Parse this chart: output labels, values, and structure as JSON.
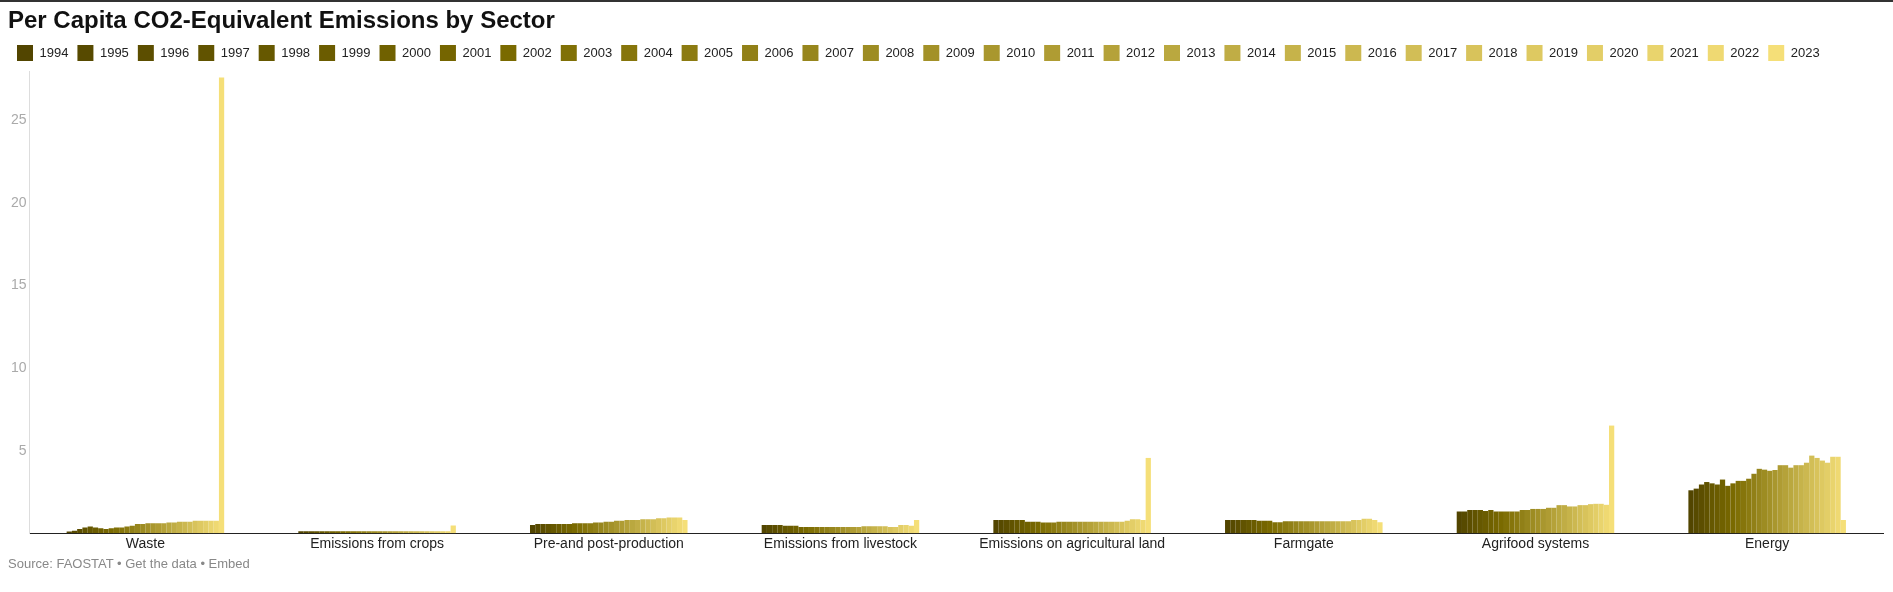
{
  "chart_data": {
    "type": "bar",
    "title": "Per Capita CO2-Equivalent Emissions by Sector",
    "categories": [
      "Waste",
      "Emissions from crops",
      "Pre-and post-production",
      "Emissions from livestock",
      "Emissions on agricultural land",
      "Farmgate",
      "Agrifood systems",
      "Energy"
    ],
    "series": [
      {
        "name": "1994",
        "color": "#524500",
        "values": [
          0.1,
          0.12,
          0.5,
          0.5,
          0.8,
          0.8,
          1.32,
          2.6
        ]
      },
      {
        "name": "1995",
        "color": "#574a00",
        "values": [
          0.15,
          0.12,
          0.55,
          0.5,
          0.8,
          0.8,
          1.32,
          2.7
        ]
      },
      {
        "name": "1996",
        "color": "#5c4e00",
        "values": [
          0.25,
          0.12,
          0.55,
          0.5,
          0.8,
          0.8,
          1.4,
          2.95
        ]
      },
      {
        "name": "1997",
        "color": "#615300",
        "values": [
          0.35,
          0.12,
          0.55,
          0.5,
          0.8,
          0.8,
          1.4,
          3.1
        ]
      },
      {
        "name": "1998",
        "color": "#665800",
        "values": [
          0.4,
          0.12,
          0.55,
          0.45,
          0.8,
          0.8,
          1.4,
          3.02
        ]
      },
      {
        "name": "1999",
        "color": "#6b5c00",
        "values": [
          0.35,
          0.12,
          0.55,
          0.45,
          0.8,
          0.8,
          1.35,
          2.95
        ]
      },
      {
        "name": "2000",
        "color": "#706100",
        "values": [
          0.3,
          0.12,
          0.55,
          0.45,
          0.7,
          0.75,
          1.4,
          3.25
        ]
      },
      {
        "name": "2001",
        "color": "#756500",
        "values": [
          0.25,
          0.12,
          0.55,
          0.37,
          0.7,
          0.75,
          1.32,
          2.87
        ]
      },
      {
        "name": "2002",
        "color": "#7a6a00",
        "values": [
          0.3,
          0.12,
          0.6,
          0.37,
          0.7,
          0.75,
          1.32,
          3.02
        ]
      },
      {
        "name": "2003",
        "color": "#807006",
        "values": [
          0.35,
          0.12,
          0.6,
          0.37,
          0.65,
          0.66,
          1.32,
          3.17
        ]
      },
      {
        "name": "2004",
        "color": "#86750b",
        "values": [
          0.35,
          0.12,
          0.6,
          0.37,
          0.65,
          0.66,
          1.32,
          3.17
        ]
      },
      {
        "name": "2005",
        "color": "#8c7b11",
        "values": [
          0.4,
          0.12,
          0.6,
          0.37,
          0.65,
          0.73,
          1.32,
          3.3
        ]
      },
      {
        "name": "2006",
        "color": "#918017",
        "values": [
          0.45,
          0.12,
          0.65,
          0.37,
          0.7,
          0.73,
          1.4,
          3.6
        ]
      },
      {
        "name": "2007",
        "color": "#97861d",
        "values": [
          0.55,
          0.12,
          0.65,
          0.37,
          0.7,
          0.73,
          1.4,
          3.9
        ]
      },
      {
        "name": "2008",
        "color": "#9d8c22",
        "values": [
          0.55,
          0.12,
          0.7,
          0.37,
          0.7,
          0.73,
          1.47,
          3.85
        ]
      },
      {
        "name": "2009",
        "color": "#a39128",
        "values": [
          0.6,
          0.12,
          0.7,
          0.37,
          0.7,
          0.73,
          1.47,
          3.78
        ]
      },
      {
        "name": "2010",
        "color": "#a9972e",
        "values": [
          0.6,
          0.12,
          0.75,
          0.37,
          0.7,
          0.73,
          1.47,
          3.83
        ]
      },
      {
        "name": "2011",
        "color": "#af9c33",
        "values": [
          0.6,
          0.12,
          0.75,
          0.37,
          0.7,
          0.73,
          1.54,
          4.12
        ]
      },
      {
        "name": "2012",
        "color": "#b5a239",
        "values": [
          0.6,
          0.12,
          0.8,
          0.37,
          0.7,
          0.73,
          1.54,
          4.12
        ]
      },
      {
        "name": "2013",
        "color": "#baa83f",
        "values": [
          0.65,
          0.12,
          0.8,
          0.42,
          0.7,
          0.73,
          1.7,
          3.97
        ]
      },
      {
        "name": "2014",
        "color": "#c0ad45",
        "values": [
          0.65,
          0.12,
          0.8,
          0.42,
          0.7,
          0.73,
          1.7,
          4.12
        ]
      },
      {
        "name": "2015",
        "color": "#c6b34a",
        "values": [
          0.7,
          0.12,
          0.85,
          0.42,
          0.7,
          0.73,
          1.62,
          4.12
        ]
      },
      {
        "name": "2016",
        "color": "#ccb850",
        "values": [
          0.7,
          0.12,
          0.85,
          0.42,
          0.7,
          0.73,
          1.62,
          4.27
        ]
      },
      {
        "name": "2017",
        "color": "#d2be56",
        "values": [
          0.7,
          0.12,
          0.85,
          0.42,
          0.7,
          0.73,
          1.7,
          4.7
        ]
      },
      {
        "name": "2018",
        "color": "#d8c35b",
        "values": [
          0.75,
          0.12,
          0.9,
          0.37,
          0.7,
          0.8,
          1.7,
          4.56
        ]
      },
      {
        "name": "2019",
        "color": "#dec961",
        "values": [
          0.75,
          0.12,
          0.9,
          0.37,
          0.75,
          0.8,
          1.76,
          4.4
        ]
      },
      {
        "name": "2020",
        "color": "#e3ce67",
        "values": [
          0.75,
          0.12,
          0.95,
          0.5,
          0.85,
          0.88,
          1.78,
          4.27
        ]
      },
      {
        "name": "2021",
        "color": "#e9d46d",
        "values": [
          0.75,
          0.12,
          0.95,
          0.5,
          0.85,
          0.88,
          1.78,
          4.63
        ]
      },
      {
        "name": "2022",
        "color": "#efd972",
        "values": [
          0.75,
          0.12,
          0.95,
          0.45,
          0.8,
          0.8,
          1.72,
          4.63
        ]
      },
      {
        "name": "2023",
        "color": "#f5df78",
        "values": [
          27.6,
          0.47,
          0.8,
          0.8,
          4.56,
          0.66,
          6.52,
          0.8
        ]
      }
    ],
    "ylim": [
      0,
      28
    ],
    "yticks": [
      5,
      10,
      15,
      20,
      25
    ],
    "grid": false,
    "legend": "top left",
    "annotations": [
      "Source: FAOSTAT • Get the data • Embed"
    ]
  }
}
